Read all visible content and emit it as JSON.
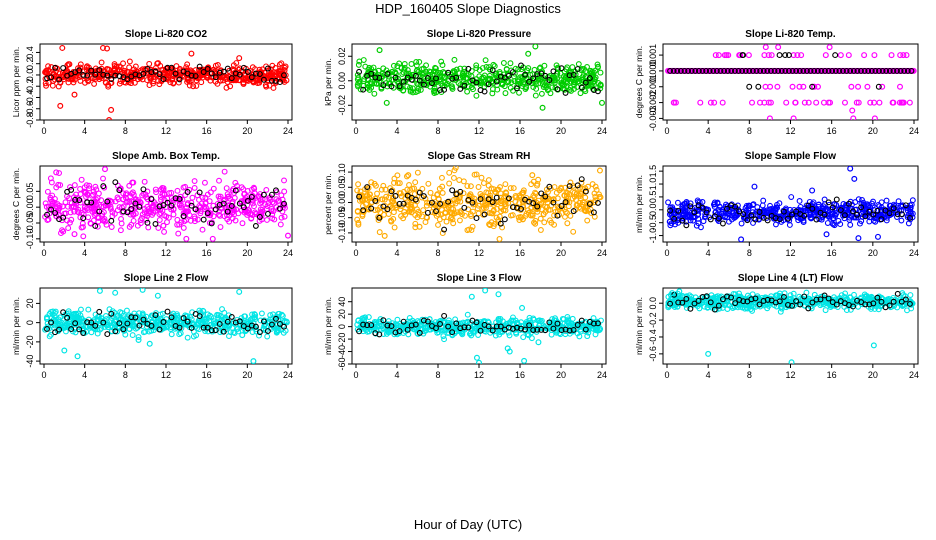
{
  "figure": {
    "title": "HDP_160405  Slope Diagnostics",
    "xlabel": "Hour of Day (UTC)"
  },
  "chart_data": [
    {
      "type": "scatter",
      "title": "Slope Li-820 CO2",
      "ylabel": "Licor ppm per min.",
      "xlim": [
        0,
        24
      ],
      "ylim": [
        -0.8,
        0.55
      ],
      "xticks": [
        "0",
        "4",
        "8",
        "12",
        "16",
        "20",
        "24"
      ],
      "yticks": [
        "-0.8",
        "-0.6",
        "-0.4",
        "-0.2",
        "0.0",
        "0.2",
        "0.4"
      ],
      "yticks_values": [
        -0.8,
        -0.6,
        -0.4,
        -0.2,
        0.0,
        0.2,
        0.4
      ],
      "color": "#ff0000",
      "center": 0.0,
      "spread": 0.09,
      "outliers": [
        [
          1.8,
          0.48
        ],
        [
          5.8,
          0.48
        ],
        [
          6.2,
          0.47
        ],
        [
          6.6,
          -0.62
        ],
        [
          6.4,
          -0.8
        ],
        [
          1.6,
          -0.55
        ],
        [
          14.5,
          0.38
        ],
        [
          19.2,
          0.3
        ],
        [
          3.0,
          -0.35
        ]
      ]
    },
    {
      "type": "scatter",
      "title": "Slope Li-820 Pressure",
      "ylabel": "kPa per min.",
      "xlim": [
        0,
        24
      ],
      "ylim": [
        -0.032,
        0.03
      ],
      "xticks": [
        "0",
        "4",
        "8",
        "12",
        "16",
        "20",
        "24"
      ],
      "yticks": [
        "-0.02",
        "0.00",
        "0.02"
      ],
      "yticks_values": [
        -0.02,
        0.0,
        0.02
      ],
      "color": "#00cc00",
      "center": 0.002,
      "spread": 0.006,
      "outliers": [
        [
          2.3,
          0.025
        ],
        [
          17.5,
          0.028
        ],
        [
          16.8,
          0.022
        ],
        [
          18.2,
          -0.022
        ],
        [
          24.0,
          -0.018
        ],
        [
          3.0,
          -0.018
        ]
      ]
    },
    {
      "type": "scatter",
      "title": "Slope Li-820 Temp.",
      "ylabel": "degrees C per min.",
      "xlim": [
        0,
        24
      ],
      "ylim": [
        -0.0031,
        0.0017
      ],
      "xticks": [
        "0",
        "4",
        "8",
        "12",
        "16",
        "20",
        "24"
      ],
      "yticks": [
        "-0.003",
        "-0.002",
        "-0.001",
        "0.000",
        "0.001"
      ],
      "yticks_values": [
        -0.003,
        -0.002,
        -0.001,
        0.0,
        0.001
      ],
      "color": "#ff00ff",
      "levels": [
        0.0,
        0.001,
        -0.001,
        -0.002
      ],
      "outliers": [
        [
          10.0,
          -0.003
        ],
        [
          12.3,
          -0.003
        ],
        [
          18.1,
          -0.003
        ],
        [
          20.2,
          -0.003
        ],
        [
          9.6,
          0.0015
        ],
        [
          10.8,
          0.0015
        ],
        [
          15.8,
          0.0015
        ],
        [
          18.0,
          -0.0025
        ]
      ]
    },
    {
      "type": "scatter",
      "title": "Slope Amb. Box Temp.",
      "ylabel": "degrees C per min.",
      "xlim": [
        0,
        24
      ],
      "ylim": [
        -0.11,
        0.13
      ],
      "xticks": [
        "0",
        "4",
        "8",
        "12",
        "16",
        "20",
        "24"
      ],
      "yticks": [
        "-0.10",
        "-0.05",
        "0.00",
        "0.05"
      ],
      "yticks_values": [
        -0.1,
        -0.05,
        0.0,
        0.05
      ],
      "color": "#ff00ff",
      "center": 0.005,
      "spread": 0.035,
      "outliers": [
        [
          1.2,
          0.11
        ],
        [
          6.0,
          0.12
        ],
        [
          24.0,
          -0.09
        ],
        [
          14.0,
          -0.1
        ],
        [
          16.6,
          -0.1
        ],
        [
          3.0,
          -0.085
        ]
      ]
    },
    {
      "type": "scatter",
      "title": "Slope Gas Stream RH",
      "ylabel": "percent per min.",
      "xlim": [
        0,
        24
      ],
      "ylim": [
        -0.13,
        0.12
      ],
      "xticks": [
        "0",
        "4",
        "8",
        "12",
        "16",
        "20",
        "24"
      ],
      "yticks": [
        "-0.10",
        "-0.05",
        "0.00",
        "0.05",
        "0.10"
      ],
      "yticks_values": [
        -0.1,
        -0.05,
        0.0,
        0.05,
        0.1
      ],
      "color": "#ffaa00",
      "center": 0.0,
      "spread": 0.04,
      "outliers": [
        [
          2.8,
          -0.11
        ],
        [
          6.2,
          -0.08
        ],
        [
          14.0,
          -0.12
        ],
        [
          5.1,
          0.09
        ],
        [
          17.2,
          0.09
        ],
        [
          23.8,
          0.105
        ]
      ]
    },
    {
      "type": "scatter",
      "title": "Slope Sample Flow",
      "ylabel": "ml/min per min.",
      "xlim": [
        0,
        24
      ],
      "ylim": [
        -1.25,
        1.7
      ],
      "xticks": [
        "0",
        "4",
        "8",
        "12",
        "16",
        "20",
        "24"
      ],
      "yticks": [
        "-1.0",
        "-0.5",
        "0.0",
        "0.5",
        "1.0",
        "1.5"
      ],
      "yticks_values": [
        -1.0,
        -0.5,
        0.0,
        0.5,
        1.0,
        1.5
      ],
      "color": "#0000ff",
      "center": -0.1,
      "spread": 0.22,
      "outliers": [
        [
          7.2,
          -1.15
        ],
        [
          15.5,
          -0.95
        ],
        [
          17.8,
          1.6
        ],
        [
          18.6,
          -1.1
        ],
        [
          20.5,
          -1.05
        ],
        [
          8.5,
          0.9
        ],
        [
          14.1,
          0.75
        ],
        [
          18.2,
          1.2
        ]
      ]
    },
    {
      "type": "scatter",
      "title": "Slope Line 2 Flow",
      "ylabel": "ml/min per min.",
      "xlim": [
        0,
        24
      ],
      "ylim": [
        -43,
        36
      ],
      "xticks": [
        "0",
        "4",
        "8",
        "12",
        "16",
        "20",
        "24"
      ],
      "yticks": [
        "-40",
        "-20",
        "0",
        "20"
      ],
      "yticks_values": [
        -40,
        -20,
        0,
        20
      ],
      "color": "#00e5e5",
      "center": 0.0,
      "spread": 6,
      "outliers": [
        [
          5.5,
          33
        ],
        [
          7.0,
          31
        ],
        [
          9.7,
          34
        ],
        [
          11.2,
          28
        ],
        [
          19.2,
          32
        ],
        [
          20.6,
          -40
        ],
        [
          2.0,
          -29
        ],
        [
          3.3,
          -35
        ],
        [
          9.3,
          -18
        ],
        [
          10.4,
          -22
        ],
        [
          19.5,
          -13
        ]
      ]
    },
    {
      "type": "scatter",
      "title": "Slope Line 3 Flow",
      "ylabel": "ml/min per min.",
      "xlim": [
        0,
        24
      ],
      "ylim": [
        -60,
        62
      ],
      "xticks": [
        "0",
        "4",
        "8",
        "12",
        "16",
        "20",
        "24"
      ],
      "yticks": [
        "-60",
        "-40",
        "-20",
        "0",
        "20",
        "40"
      ],
      "yticks_values": [
        -60,
        -40,
        -20,
        0,
        20,
        40
      ],
      "color": "#00e5e5",
      "center": 0.0,
      "spread": 7,
      "outliers": [
        [
          12.6,
          58
        ],
        [
          13.9,
          52
        ],
        [
          11.3,
          48
        ],
        [
          15.0,
          -40
        ],
        [
          16.4,
          -55
        ],
        [
          12.0,
          -58
        ],
        [
          14.8,
          -35
        ],
        [
          17.8,
          -25
        ],
        [
          11.8,
          -50
        ],
        [
          16.2,
          30
        ]
      ]
    },
    {
      "type": "scatter",
      "title": "Slope Line 4 (LT) Flow",
      "ylabel": "ml/min per min.",
      "xlim": [
        0,
        24
      ],
      "ylim": [
        -0.72,
        0.18
      ],
      "xticks": [
        "0",
        "4",
        "8",
        "12",
        "16",
        "20",
        "24"
      ],
      "yticks": [
        "-0.6",
        "-0.4",
        "-0.2",
        "0.0"
      ],
      "yticks_values": [
        -0.6,
        -0.4,
        -0.2,
        0.0
      ],
      "color": "#00e5e5",
      "center": 0.02,
      "spread": 0.045,
      "outliers": [
        [
          4.0,
          -0.6
        ],
        [
          12.1,
          -0.7
        ],
        [
          20.1,
          -0.5
        ],
        [
          0.5,
          0.12
        ],
        [
          1.2,
          0.14
        ]
      ]
    }
  ]
}
